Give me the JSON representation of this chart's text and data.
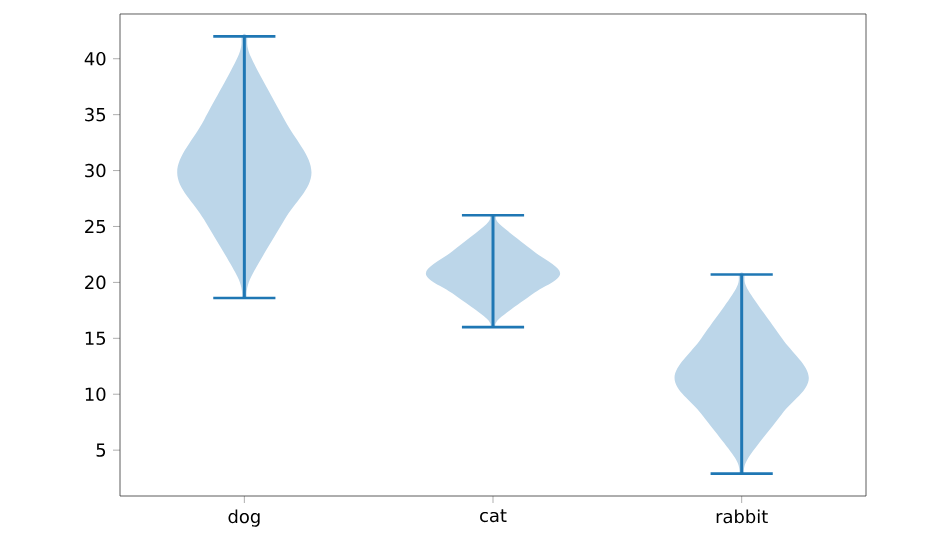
{
  "chart_data": {
    "type": "bar",
    "categories": [
      "dog",
      "cat",
      "rabbit"
    ],
    "color": "#1f77b4",
    "base": [
      18.6,
      16,
      2.9
    ],
    "values": [
      23.4,
      10,
      17.8
    ],
    "ylim": [
      0.9,
      44
    ],
    "yticks": [
      5,
      10,
      15,
      20,
      25,
      30,
      35,
      40
    ],
    "grid": false
  }
}
